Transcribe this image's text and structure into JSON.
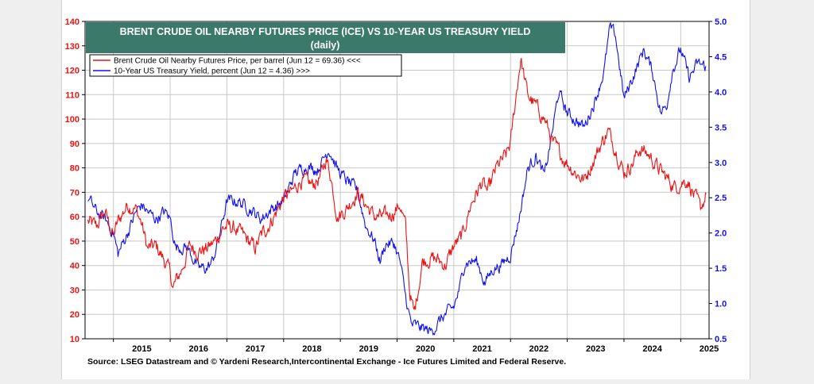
{
  "title": "BRENT CRUDE OIL NEARBY FUTURES PRICE (ICE) VS 10-YEAR US TREASURY YIELD",
  "subtitle": "(daily)",
  "source": "Source: LSEG Datastream and © Yardeni Research,Intercontinental Exchange - Ice Futures Limited and Federal Reserve.",
  "colors": {
    "title_bg": "#3b7a6b",
    "oil": "#ee1111",
    "yield": "#1111ee",
    "page_bg": "#efefef"
  },
  "chart_data": {
    "type": "line",
    "legend_position": "top-left",
    "grid": true,
    "x_ticks": [
      "2015",
      "2016",
      "2017",
      "2018",
      "2019",
      "2020",
      "2021",
      "2022",
      "2023",
      "2024",
      "2025"
    ],
    "xlim": [
      2014.5,
      2025.5
    ],
    "left_axis": {
      "ylim": [
        10,
        140
      ],
      "ticks": [
        "10",
        "20",
        "30",
        "40",
        "50",
        "60",
        "70",
        "80",
        "90",
        "100",
        "110",
        "120",
        "130",
        "140"
      ]
    },
    "right_axis": {
      "ylim": [
        0.5,
        5.0
      ],
      "ticks": [
        "0.5",
        "1.0",
        "1.5",
        "2.0",
        "2.5",
        "3.0",
        "3.5",
        "4.0",
        "4.5",
        "5.0"
      ]
    },
    "series": [
      {
        "name": "Brent Crude Oil Nearby Futures Price, per barrel (Jun 12 = 69.36) <<<",
        "axis": "left",
        "x": [
          2014.55,
          2014.7,
          2014.85,
          2015.0,
          2015.08,
          2015.25,
          2015.4,
          2015.5,
          2015.6,
          2015.75,
          2015.9,
          2016.0,
          2016.05,
          2016.2,
          2016.35,
          2016.5,
          2016.65,
          2016.8,
          2016.92,
          2017.0,
          2017.15,
          2017.3,
          2017.5,
          2017.6,
          2017.75,
          2017.9,
          2018.0,
          2018.15,
          2018.3,
          2018.5,
          2018.65,
          2018.75,
          2018.82,
          2018.95,
          2019.1,
          2019.3,
          2019.45,
          2019.6,
          2019.8,
          2019.95,
          2020.05,
          2020.15,
          2020.22,
          2020.3,
          2020.45,
          2020.6,
          2020.75,
          2020.85,
          2021.0,
          2021.15,
          2021.3,
          2021.5,
          2021.6,
          2021.75,
          2021.92,
          2022.0,
          2022.1,
          2022.18,
          2022.3,
          2022.45,
          2022.6,
          2022.75,
          2022.9,
          2023.0,
          2023.15,
          2023.3,
          2023.5,
          2023.6,
          2023.72,
          2023.85,
          2024.0,
          2024.15,
          2024.28,
          2024.45,
          2024.6,
          2024.75,
          2024.9,
          2025.0,
          2025.12,
          2025.25,
          2025.35,
          2025.45
        ],
        "values": [
          58,
          56,
          62,
          52,
          58,
          65,
          63,
          57,
          47,
          48,
          42,
          37,
          31,
          38,
          48,
          46,
          47,
          50,
          55,
          56,
          55,
          52,
          47,
          52,
          57,
          63,
          68,
          70,
          75,
          73,
          76,
          84,
          78,
          60,
          63,
          70,
          65,
          60,
          60,
          62,
          65,
          56,
          30,
          20,
          42,
          43,
          42,
          40,
          48,
          52,
          65,
          74,
          70,
          80,
          85,
          90,
          110,
          125,
          110,
          105,
          100,
          90,
          85,
          82,
          78,
          75,
          85,
          90,
          95,
          88,
          78,
          82,
          88,
          85,
          80,
          76,
          72,
          74,
          75,
          68,
          63,
          69.36
        ]
      },
      {
        "name": "10-Year US Treasury Yield, percent (Jun 12 = 4.36) >>>",
        "axis": "right",
        "x": [
          2014.55,
          2014.7,
          2014.85,
          2015.0,
          2015.08,
          2015.25,
          2015.4,
          2015.5,
          2015.6,
          2015.75,
          2015.9,
          2016.0,
          2016.1,
          2016.3,
          2016.5,
          2016.65,
          2016.75,
          2016.85,
          2017.0,
          2017.2,
          2017.4,
          2017.6,
          2017.8,
          2018.0,
          2018.2,
          2018.4,
          2018.6,
          2018.8,
          2018.95,
          2019.1,
          2019.3,
          2019.45,
          2019.6,
          2019.7,
          2019.8,
          2019.95,
          2020.05,
          2020.15,
          2020.25,
          2020.45,
          2020.6,
          2020.8,
          2021.0,
          2021.1,
          2021.2,
          2021.4,
          2021.55,
          2021.7,
          2021.85,
          2022.0,
          2022.15,
          2022.3,
          2022.45,
          2022.6,
          2022.75,
          2022.85,
          2023.0,
          2023.15,
          2023.3,
          2023.5,
          2023.65,
          2023.75,
          2023.85,
          2024.0,
          2024.2,
          2024.35,
          2024.5,
          2024.65,
          2024.75,
          2024.85,
          2025.0,
          2025.15,
          2025.3,
          2025.45
        ],
        "values": [
          2.5,
          2.3,
          2.2,
          2.0,
          1.7,
          2.0,
          2.3,
          2.4,
          2.3,
          2.2,
          2.3,
          2.2,
          1.8,
          1.8,
          1.5,
          1.5,
          1.6,
          1.9,
          2.45,
          2.45,
          2.35,
          2.2,
          2.35,
          2.45,
          2.85,
          2.95,
          2.9,
          3.2,
          2.9,
          2.75,
          2.6,
          2.1,
          1.9,
          1.6,
          1.85,
          1.85,
          1.6,
          1.1,
          0.7,
          0.65,
          0.6,
          0.8,
          0.95,
          1.2,
          1.6,
          1.6,
          1.3,
          1.5,
          1.55,
          1.7,
          2.2,
          2.9,
          3.1,
          2.8,
          3.5,
          4.0,
          3.7,
          3.6,
          3.5,
          3.9,
          4.3,
          4.9,
          4.8,
          3.9,
          4.3,
          4.6,
          4.3,
          3.7,
          3.8,
          4.3,
          4.6,
          4.2,
          4.4,
          4.36
        ]
      }
    ]
  }
}
